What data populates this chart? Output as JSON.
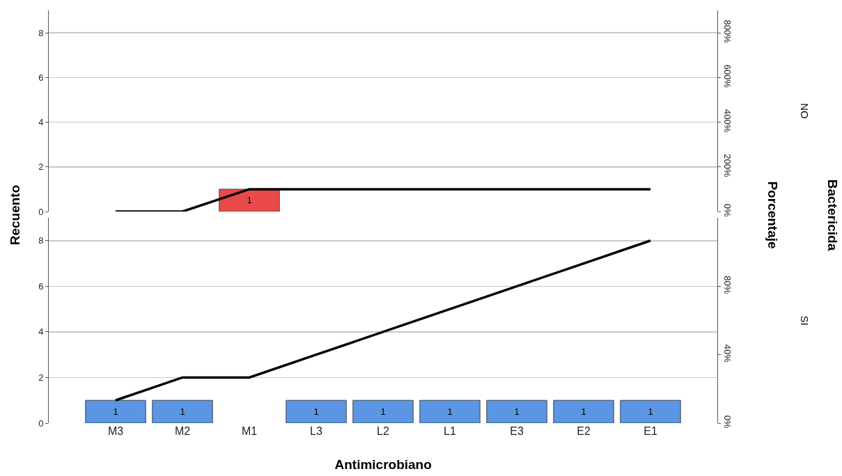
{
  "chart_data": [
    {
      "type": "bar",
      "categories": [
        null,
        null,
        null,
        null,
        null,
        null,
        null,
        null,
        null
      ],
      "tick_labels": "y",
      "grid": "y",
      "legend": false,
      "series": [
        {
          "color": "#e84a4a",
          "values": [
            null,
            null,
            1,
            null,
            null,
            null,
            null,
            null,
            null
          ],
          "value_labels": [
            null,
            null,
            "1",
            null,
            null,
            null,
            null,
            null,
            null
          ]
        },
        {
          "type": "line",
          "color": "#000000",
          "values": [
            0,
            0,
            1,
            1,
            1,
            1,
            1,
            1,
            1
          ]
        }
      ],
      "ylim": [
        0,
        9
      ],
      "yticks": [
        0,
        2,
        4,
        6,
        8
      ],
      "y2lim": [
        0,
        900
      ],
      "y2ticks": [
        {
          "value": 0,
          "label": "0%"
        },
        {
          "value": 200,
          "label": "200%"
        },
        {
          "value": 400,
          "label": "400%"
        },
        {
          "value": 600,
          "label": "600%"
        },
        {
          "value": 800,
          "label": "800%"
        }
      ],
      "annotations": [
        "NO"
      ]
    },
    {
      "type": "bar",
      "categories": [
        "M3",
        "M2",
        "M1",
        "L3",
        "L2",
        "L1",
        "E3",
        "E2",
        "E1"
      ],
      "grid": "y",
      "legend": false,
      "xlabel": "Antimicrobiano",
      "ylabel": "Recuento",
      "y2label": "Porcentaje",
      "series": [
        {
          "color": "#5a96e3",
          "values": [
            1,
            1,
            null,
            1,
            1,
            1,
            1,
            1,
            1
          ],
          "value_labels": [
            "1",
            "1",
            null,
            "1",
            "1",
            "1",
            "1",
            "1",
            "1"
          ]
        },
        {
          "type": "line",
          "color": "#000000",
          "values": [
            1,
            2,
            2,
            3,
            4,
            5,
            6,
            7,
            8
          ]
        }
      ],
      "ylim": [
        0,
        9
      ],
      "yticks": [
        0,
        2,
        4,
        6,
        8
      ],
      "y2lim": [
        0,
        120
      ],
      "y2ticks": [
        {
          "value": 0,
          "label": "0%"
        },
        {
          "value": 40,
          "label": "40%"
        },
        {
          "value": 80,
          "label": "80%"
        }
      ],
      "annotations": [
        "SI",
        "Bactericida"
      ]
    }
  ]
}
